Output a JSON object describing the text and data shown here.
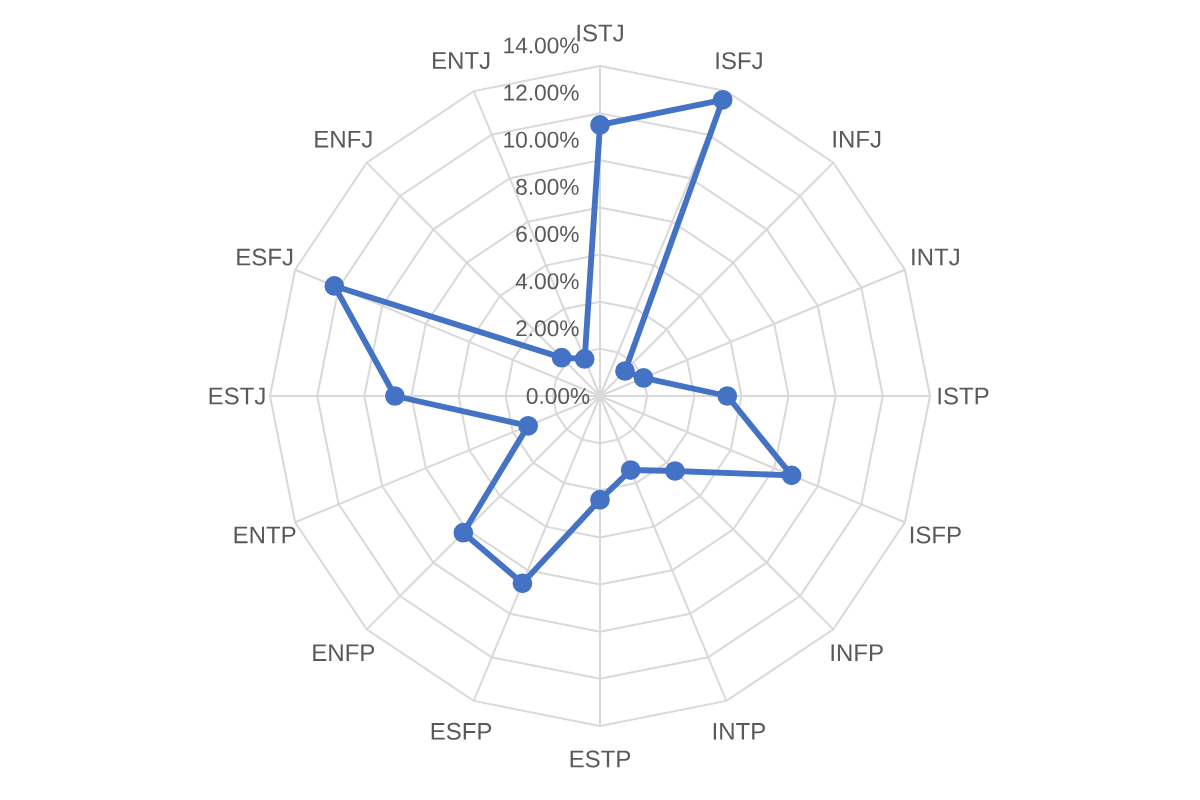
{
  "chart_data": {
    "type": "radar",
    "categories": [
      "ISTJ",
      "ISFJ",
      "INFJ",
      "INTJ",
      "ISTP",
      "ISFP",
      "INFP",
      "INTP",
      "ESTP",
      "ESFP",
      "ENFP",
      "ENTP",
      "ESTJ",
      "ESFJ",
      "ENFJ",
      "ENTJ"
    ],
    "series": [
      {
        "color": "#4472c4",
        "values": [
          11.5,
          13.6,
          1.5,
          2.0,
          5.4,
          8.8,
          4.5,
          3.4,
          4.4,
          8.6,
          8.2,
          3.3,
          8.7,
          12.2,
          2.3,
          1.7
        ]
      }
    ],
    "ylim": [
      0,
      14
    ],
    "yticks": [
      {
        "value": 0,
        "label": "0.00%"
      },
      {
        "value": 2,
        "label": "2.00%"
      },
      {
        "value": 4,
        "label": "4.00%"
      },
      {
        "value": 6,
        "label": "6.00%"
      },
      {
        "value": 8,
        "label": "8.00%"
      },
      {
        "value": 10,
        "label": "10.00%"
      },
      {
        "value": 12,
        "label": "12.00%"
      },
      {
        "value": 14,
        "label": "14.00%"
      }
    ],
    "grid": true,
    "marker": "circle",
    "line_style": "solid"
  }
}
